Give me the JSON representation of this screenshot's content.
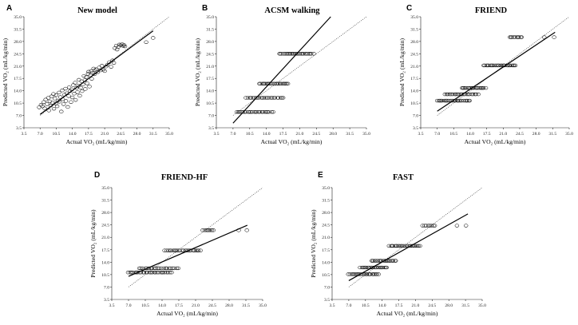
{
  "figure": {
    "panels": [
      {
        "letter": "A",
        "title": "New model"
      },
      {
        "letter": "B",
        "title": "ACSM walking"
      },
      {
        "letter": "C",
        "title": "FRIEND"
      },
      {
        "letter": "D",
        "title": "FRIEND-HF"
      },
      {
        "letter": "E",
        "title": "FAST"
      }
    ],
    "xlabel": "Actual VO₂ (mL/kg/min)",
    "ylabel": "Predicted VO₂ (mL/kg/min)",
    "ticks": [
      "3.5",
      "7.0",
      "10.5",
      "14.0",
      "17.5",
      "21.0",
      "24.5",
      "28.0",
      "31.5",
      "35.0"
    ]
  },
  "chart_data": [
    {
      "type": "scatter",
      "panel": "A",
      "title": "New model",
      "xlabel": "Actual VO₂ (mL/kg/min)",
      "ylabel": "Predicted VO₂ (mL/kg/min)",
      "xlim": [
        3.5,
        35.0
      ],
      "ylim": [
        3.5,
        35.0
      ],
      "identity_line": true,
      "regression": {
        "x": [
          7.0,
          31.5
        ],
        "y": [
          7.3,
          31.0
        ]
      },
      "points": [
        [
          6.8,
          9.3
        ],
        [
          7.2,
          10.0
        ],
        [
          7.5,
          9.6
        ],
        [
          7.8,
          10.8
        ],
        [
          8.0,
          9.0
        ],
        [
          8.2,
          11.5
        ],
        [
          8.5,
          10.2
        ],
        [
          8.8,
          12.0
        ],
        [
          8.9,
          8.4
        ],
        [
          9.1,
          11.0
        ],
        [
          9.3,
          9.8
        ],
        [
          9.5,
          12.4
        ],
        [
          9.7,
          10.6
        ],
        [
          9.9,
          13.1
        ],
        [
          10.0,
          8.9
        ],
        [
          10.2,
          11.8
        ],
        [
          10.4,
          10.4
        ],
        [
          10.5,
          12.8
        ],
        [
          10.7,
          9.6
        ],
        [
          10.9,
          11.2
        ],
        [
          11.1,
          13.5
        ],
        [
          11.2,
          10.9
        ],
        [
          11.4,
          12.2
        ],
        [
          11.6,
          8.1
        ],
        [
          11.8,
          14.1
        ],
        [
          11.9,
          11.6
        ],
        [
          12.1,
          10.2
        ],
        [
          12.3,
          12.9
        ],
        [
          12.5,
          14.6
        ],
        [
          12.6,
          11.1
        ],
        [
          12.8,
          13.3
        ],
        [
          13.0,
          9.4
        ],
        [
          13.2,
          12.5
        ],
        [
          13.3,
          15.0
        ],
        [
          13.5,
          13.9
        ],
        [
          13.7,
          10.8
        ],
        [
          13.9,
          14.4
        ],
        [
          14.0,
          12.1
        ],
        [
          14.2,
          15.6
        ],
        [
          14.4,
          13.2
        ],
        [
          14.6,
          16.3
        ],
        [
          14.7,
          11.4
        ],
        [
          14.9,
          14.8
        ],
        [
          15.1,
          13.6
        ],
        [
          15.3,
          15.4
        ],
        [
          15.4,
          17.1
        ],
        [
          15.6,
          12.6
        ],
        [
          15.8,
          14.9
        ],
        [
          16.0,
          16.7
        ],
        [
          16.1,
          13.9
        ],
        [
          16.3,
          15.8
        ],
        [
          16.5,
          18.2
        ],
        [
          16.7,
          17.0
        ],
        [
          16.8,
          14.5
        ],
        [
          17.0,
          17.9
        ],
        [
          17.2,
          16.1
        ],
        [
          17.4,
          18.8
        ],
        [
          17.5,
          19.4
        ],
        [
          17.7,
          15.2
        ],
        [
          17.9,
          18.4
        ],
        [
          18.1,
          19.6
        ],
        [
          18.2,
          17.4
        ],
        [
          18.4,
          19.1
        ],
        [
          18.6,
          20.3
        ],
        [
          18.8,
          18.7
        ],
        [
          18.9,
          19.9
        ],
        [
          19.2,
          20.1
        ],
        [
          19.5,
          19.3
        ],
        [
          19.8,
          20.6
        ],
        [
          20.1,
          19.8
        ],
        [
          20.4,
          21.1
        ],
        [
          20.7,
          20.0
        ],
        [
          21.0,
          19.6
        ],
        [
          21.3,
          20.9
        ],
        [
          21.6,
          21.4
        ],
        [
          22.0,
          22.1
        ],
        [
          22.4,
          20.8
        ],
        [
          22.7,
          22.6
        ],
        [
          23.0,
          21.9
        ],
        [
          23.2,
          26.1
        ],
        [
          23.5,
          26.8
        ],
        [
          23.7,
          25.7
        ],
        [
          24.0,
          26.5
        ],
        [
          24.2,
          27.1
        ],
        [
          24.5,
          26.9
        ],
        [
          24.8,
          27.2
        ],
        [
          25.0,
          26.7
        ],
        [
          25.2,
          27.0
        ],
        [
          25.4,
          26.6
        ],
        [
          30.0,
          27.8
        ],
        [
          31.5,
          29.0
        ]
      ]
    },
    {
      "type": "scatter",
      "panel": "B",
      "title": "ACSM walking",
      "xlabel": "Actual VO₂ (mL/kg/min)",
      "ylabel": "Predicted VO₂ (mL/kg/min)",
      "xlim": [
        3.5,
        35.0
      ],
      "ylim": [
        3.5,
        35.0
      ],
      "identity_line": true,
      "regression": {
        "x": [
          7.0,
          27.5
        ],
        "y": [
          4.8,
          35.0
        ]
      },
      "levels": [
        {
          "y": 8.0,
          "x_range": [
            7.8,
            15.3
          ],
          "count": 24
        },
        {
          "y": 12.0,
          "x_range": [
            9.8,
            17.6
          ],
          "count": 24
        },
        {
          "y": 16.0,
          "x_range": [
            12.5,
            18.6
          ],
          "count": 22
        },
        {
          "y": 24.5,
          "x_range": [
            16.7,
            23.8
          ],
          "count": 26
        }
      ]
    },
    {
      "type": "scatter",
      "panel": "C",
      "title": "FRIEND",
      "xlabel": "Actual VO₂ (mL/kg/min)",
      "ylabel": "Predicted VO₂ (mL/kg/min)",
      "xlim": [
        3.5,
        35.0
      ],
      "ylim": [
        3.5,
        35.0
      ],
      "identity_line": true,
      "regression": {
        "x": [
          7.0,
          32.0
        ],
        "y": [
          8.2,
          30.6
        ]
      },
      "levels": [
        {
          "y": 11.2,
          "x_range": [
            7.0,
            14.0
          ],
          "count": 26
        },
        {
          "y": 13.0,
          "x_range": [
            8.7,
            15.6
          ],
          "count": 22
        },
        {
          "y": 14.8,
          "x_range": [
            12.2,
            17.2
          ],
          "count": 20
        },
        {
          "y": 21.2,
          "x_range": [
            16.8,
            23.6
          ],
          "count": 26
        },
        {
          "y": 29.2,
          "x_range": [
            22.3,
            25.0
          ],
          "count": 10
        }
      ],
      "extra_points": [
        [
          29.7,
          29.2
        ],
        [
          31.8,
          29.2
        ]
      ]
    },
    {
      "type": "scatter",
      "panel": "D",
      "title": "FRIEND-HF",
      "xlabel": "Actual VO₂ (mL/kg/min)",
      "ylabel": "Predicted VO₂ (mL/kg/min)",
      "xlim": [
        3.5,
        35.0
      ],
      "ylim": [
        3.5,
        35.0
      ],
      "identity_line": true,
      "regression": {
        "x": [
          7.0,
          31.8
        ],
        "y": [
          10.0,
          24.4
        ]
      },
      "levels": [
        {
          "y": 11.1,
          "x_range": [
            7.0,
            16.0
          ],
          "count": 28
        },
        {
          "y": 12.3,
          "x_range": [
            9.3,
            17.4
          ],
          "count": 22
        },
        {
          "y": 17.3,
          "x_range": [
            14.6,
            22.0
          ],
          "count": 24
        },
        {
          "y": 23.0,
          "x_range": [
            22.6,
            24.7
          ],
          "count": 8
        }
      ],
      "extra_points": [
        [
          30.0,
          23.0
        ],
        [
          31.7,
          23.0
        ]
      ]
    },
    {
      "type": "scatter",
      "panel": "E",
      "title": "FAST",
      "xlabel": "Actual VO₂ (mL/kg/min)",
      "ylabel": "Predicted VO₂ (mL/kg/min)",
      "xlim": [
        3.5,
        35.0
      ],
      "ylim": [
        3.5,
        35.0
      ],
      "identity_line": true,
      "regression": {
        "x": [
          7.0,
          32.0
        ],
        "y": [
          8.8,
          27.6
        ]
      },
      "levels": [
        {
          "y": 10.6,
          "x_range": [
            7.0,
            13.3
          ],
          "count": 24
        },
        {
          "y": 12.5,
          "x_range": [
            9.4,
            15.1
          ],
          "count": 22
        },
        {
          "y": 14.4,
          "x_range": [
            11.8,
            16.9
          ],
          "count": 22
        },
        {
          "y": 18.6,
          "x_range": [
            15.5,
            22.0
          ],
          "count": 24
        },
        {
          "y": 24.3,
          "x_range": [
            22.6,
            25.0
          ],
          "count": 8
        }
      ],
      "extra_points": [
        [
          29.7,
          24.3
        ],
        [
          31.6,
          24.3
        ]
      ]
    }
  ]
}
